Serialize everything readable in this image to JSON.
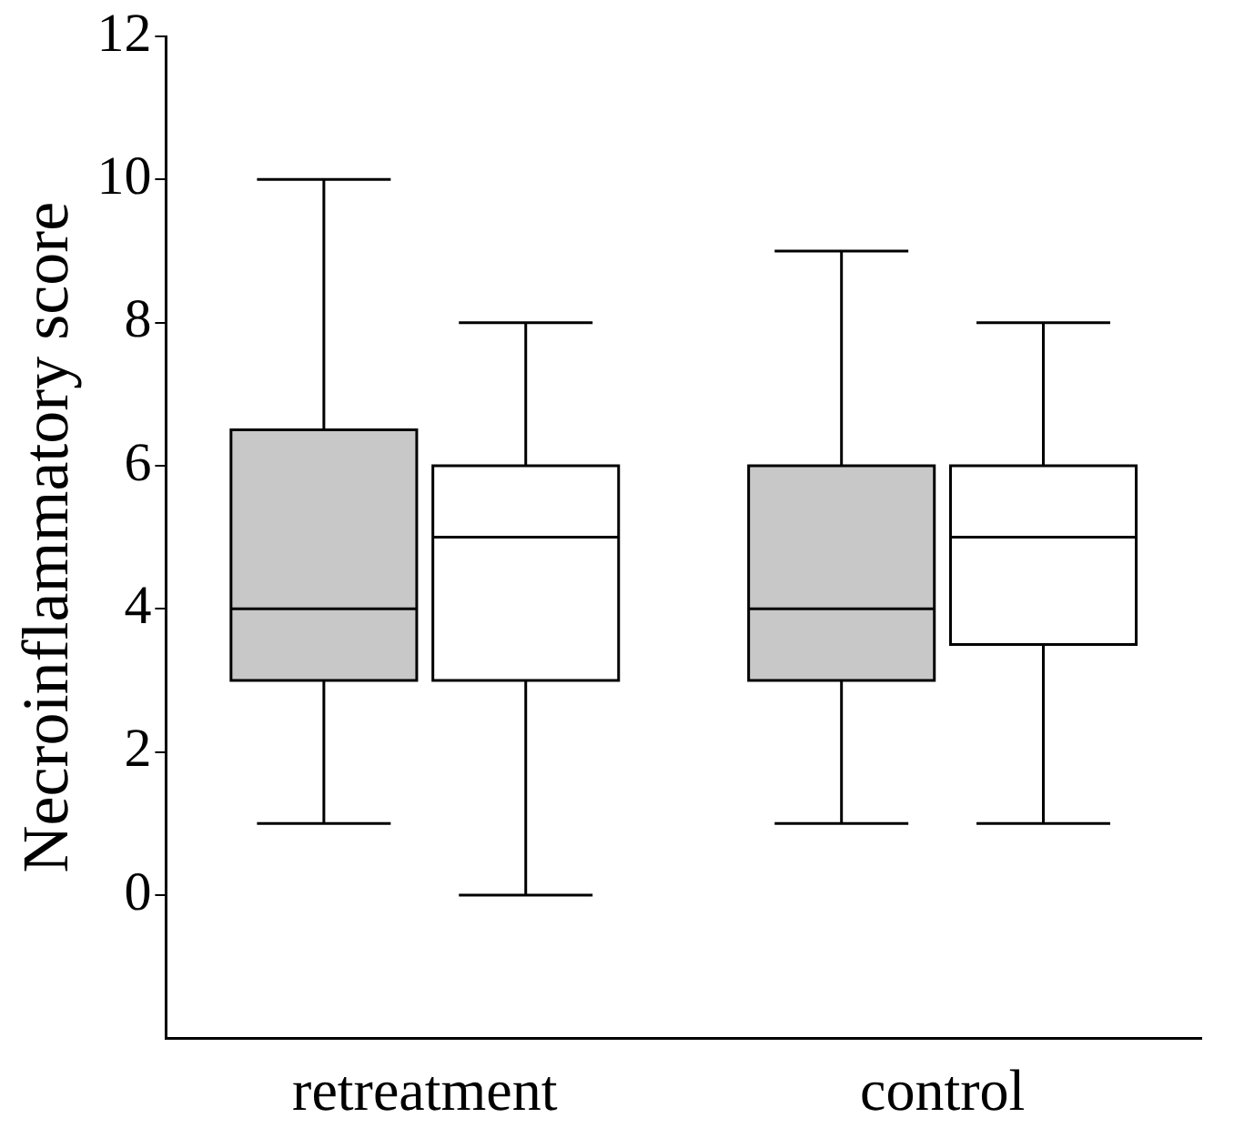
{
  "chart_data": {
    "type": "box",
    "ylabel": "Necroinflammatory score",
    "categories": [
      "retreatment",
      "control"
    ],
    "series": [
      {
        "color": "#c8c8c8",
        "boxes": [
          {
            "low": 1,
            "q1": 3,
            "median": 4,
            "q3": 6.5,
            "high": 10
          },
          {
            "low": 1,
            "q1": 3,
            "median": 4,
            "q3": 6,
            "high": 9
          }
        ]
      },
      {
        "color": "#ffffff",
        "boxes": [
          {
            "low": 0,
            "q1": 3,
            "median": 5,
            "q3": 6,
            "high": 8
          },
          {
            "low": 1,
            "q1": 3.5,
            "median": 5,
            "q3": 6,
            "high": 8
          }
        ]
      }
    ],
    "ylim": [
      -2,
      12
    ],
    "yticks": [
      0,
      2,
      4,
      6,
      8,
      10,
      12
    ],
    "grid": false,
    "legend": false
  }
}
